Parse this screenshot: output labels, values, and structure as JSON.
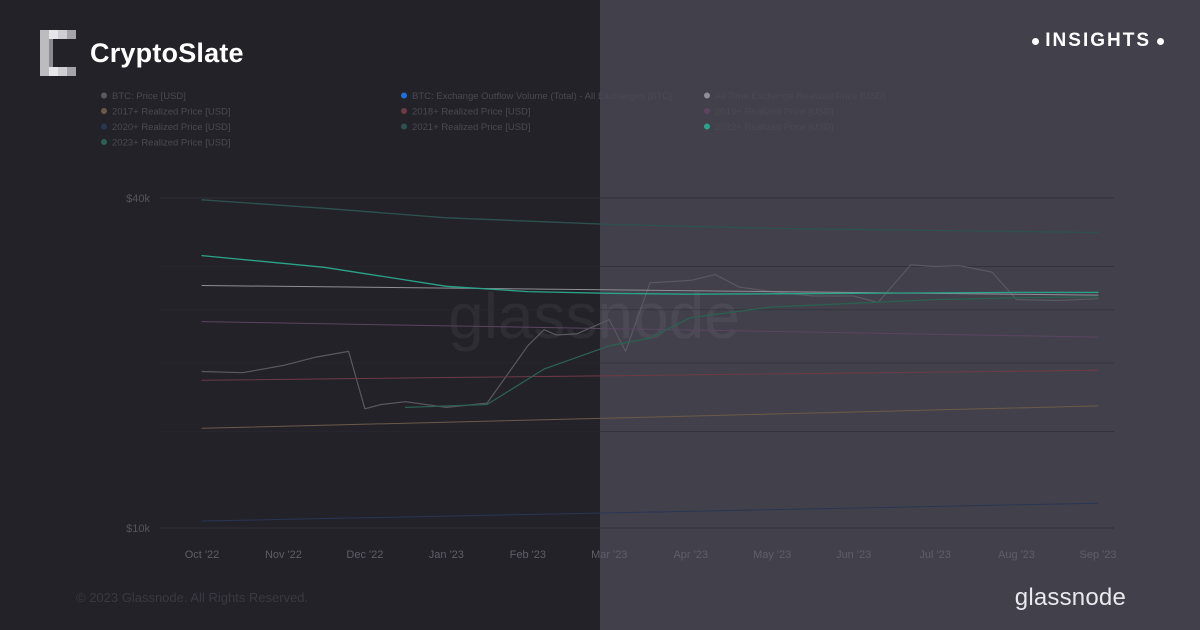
{
  "brand": {
    "name": "CryptoSlate"
  },
  "badge": {
    "label": "INSIGHTS"
  },
  "footer": {
    "copyright": "© 2023 Glassnode. All Rights Reserved.",
    "logo_text": "glassnode"
  },
  "colors": {
    "btc_price": "#5a5860",
    "outflow": "#1e6fd9",
    "all_time_realized": "#8f8f97",
    "r2017": "#6b5a4a",
    "r2018": "#6e3a46",
    "r2019": "#5a4560",
    "r2020": "#2a3552",
    "r2021": "#2e5150",
    "r2022": "#2aa38a",
    "r2023": "#2c6050"
  },
  "chart_data": {
    "type": "line",
    "watermark": "glassnode",
    "y_scale": "log",
    "ylim": [
      10000,
      40000
    ],
    "y_ticks": [
      {
        "label": "$40k",
        "value": 40000
      },
      {
        "label": "$10k",
        "value": 10000
      }
    ],
    "x_ticks": [
      "Oct '22",
      "Nov '22",
      "Dec '22",
      "Jan '23",
      "Feb '23",
      "Mar '23",
      "Apr '23",
      "May '23",
      "Jun '23",
      "Jul '23",
      "Aug '23",
      "Sep '23"
    ],
    "legend": [
      {
        "label": "BTC: Price [USD]",
        "color": "#5a5860"
      },
      {
        "label": "BTC: Exchange Outflow Volume (Total) - All Exchanges [BTC]",
        "color": "#1e6fd9"
      },
      {
        "label": "All Time Exchange Realized Price [USD]",
        "color": "#8f8f97"
      },
      {
        "label": "2017+ Realized Price [USD]",
        "color": "#6b5a4a"
      },
      {
        "label": "2018+ Realized Price [USD]",
        "color": "#6e3a46"
      },
      {
        "label": "2019+ Realized Price [USD]",
        "color": "#5a4560"
      },
      {
        "label": "2020+ Realized Price [USD]",
        "color": "#2a3552"
      },
      {
        "label": "2021+ Realized Price [USD]",
        "color": "#2e5150"
      },
      {
        "label": "2022+ Realized Price [USD]",
        "color": "#2aa38a"
      },
      {
        "label": "2023+ Realized Price [USD]",
        "color": "#2c6050"
      }
    ],
    "series": [
      {
        "name": "BTC: Price [USD]",
        "color": "#5a5860",
        "width": 1.2,
        "x": [
          0,
          0.5,
          1,
          1.4,
          1.8,
          2.0,
          2.2,
          2.5,
          3,
          3.5,
          4,
          4.2,
          4.35,
          4.6,
          5,
          5.2,
          5.5,
          6,
          6.3,
          6.6,
          7,
          7.5,
          8,
          8.3,
          8.7,
          9,
          9.3,
          9.7,
          10,
          10.5,
          11
        ],
        "y": [
          19300,
          19200,
          19800,
          20500,
          21000,
          16500,
          16800,
          17000,
          16600,
          16900,
          21500,
          23000,
          22500,
          22600,
          24000,
          21000,
          28000,
          28300,
          29000,
          27500,
          27000,
          26500,
          26500,
          25800,
          30200,
          30000,
          30100,
          29300,
          26100,
          26000,
          26200
        ]
      },
      {
        "name": "All Time Exchange Realized Price [USD]",
        "color": "#8f8f97",
        "width": 1,
        "x": [
          0,
          11
        ],
        "y": [
          27700,
          26600
        ]
      },
      {
        "name": "2017+ Realized Price [USD]",
        "color": "#6b5a4a",
        "width": 1,
        "x": [
          0,
          11
        ],
        "y": [
          15200,
          16700
        ]
      },
      {
        "name": "2018+ Realized Price [USD]",
        "color": "#6e3a46",
        "width": 1,
        "x": [
          0,
          11
        ],
        "y": [
          18600,
          19400
        ]
      },
      {
        "name": "2019+ Realized Price [USD]",
        "color": "#5a4560",
        "width": 1,
        "x": [
          0,
          11
        ],
        "y": [
          23800,
          22300
        ]
      },
      {
        "name": "2020+ Realized Price [USD]",
        "color": "#2a3552",
        "width": 1,
        "x": [
          0,
          11
        ],
        "y": [
          10300,
          11100
        ]
      },
      {
        "name": "2021+ Realized Price [USD]",
        "color": "#2e5150",
        "width": 1.3,
        "x": [
          0,
          1.5,
          3,
          5,
          7,
          9,
          11
        ],
        "y": [
          39700,
          38300,
          36800,
          35800,
          35200,
          34900,
          34600
        ]
      },
      {
        "name": "2022+ Realized Price [USD]",
        "color": "#2aa38a",
        "width": 1.3,
        "x": [
          0,
          1.5,
          3,
          4,
          5,
          6,
          8,
          10,
          11
        ],
        "y": [
          31400,
          29900,
          27600,
          27000,
          26800,
          26700,
          26800,
          26900,
          26900
        ]
      },
      {
        "name": "2023+ Realized Price [USD]",
        "color": "#2c6050",
        "width": 1.3,
        "x": [
          2.5,
          3.5,
          4.2,
          5,
          5.5,
          6,
          7,
          8,
          9,
          10,
          11
        ],
        "y": [
          16600,
          16800,
          19500,
          21500,
          22200,
          24200,
          25300,
          25700,
          26100,
          26300,
          26400
        ]
      }
    ]
  }
}
